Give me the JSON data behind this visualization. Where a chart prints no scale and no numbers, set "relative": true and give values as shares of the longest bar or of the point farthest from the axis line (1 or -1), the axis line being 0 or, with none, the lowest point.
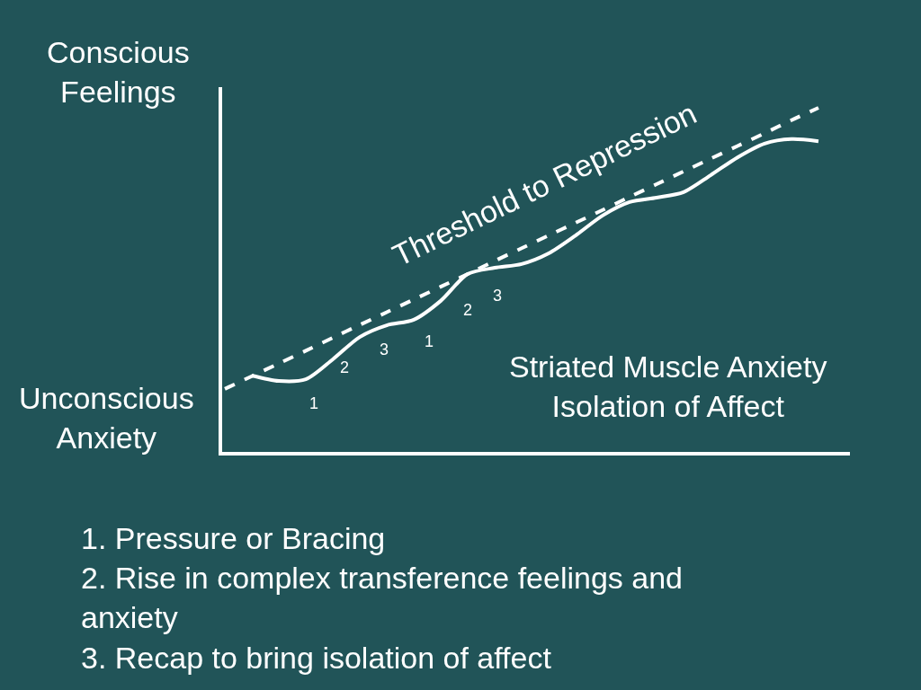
{
  "chart_data": {
    "type": "line",
    "relative": true,
    "legend": false,
    "grid": false,
    "marker": "none",
    "categories": [
      null,
      null,
      null,
      null,
      null,
      null,
      null,
      null,
      null,
      null,
      null,
      null,
      null,
      null,
      null,
      null,
      null,
      null,
      null,
      null,
      null,
      null,
      null
    ],
    "series": [
      {
        "color": "#ffffff",
        "line_style": "solid",
        "values": [
          null,
          0.222,
          0.206,
          0.211,
          0.269,
          0.334,
          0.368,
          0.384,
          0.439,
          0.517,
          0.535,
          0.546,
          0.577,
          0.629,
          0.687,
          0.726,
          0.739,
          0.755,
          0.804,
          0.856,
          0.896,
          0.909,
          0.903
        ]
      },
      {
        "name": "Threshold to Repression",
        "color": "#ffffff",
        "line_style": "dashed",
        "values": [
          0.183,
          0.22,
          0.257,
          0.294,
          0.332,
          0.369,
          0.406,
          0.443,
          0.48,
          0.517,
          0.555,
          0.592,
          0.629,
          0.666,
          0.703,
          0.741,
          0.778,
          0.815,
          0.852,
          0.889,
          0.926,
          0.964,
          1.0
        ]
      }
    ],
    "annotations": [
      "Conscious\nFeelings",
      "Unconscious\nAnxiety",
      "1",
      "2",
      "3",
      "1",
      "2",
      "3",
      "Striated Muscle Anxiety\nIsolation of Affect",
      "1. Pressure or Bracing\n2. Rise in complex transference feelings and\nanxiety\n3. Recap to bring isolation of affect"
    ]
  }
}
